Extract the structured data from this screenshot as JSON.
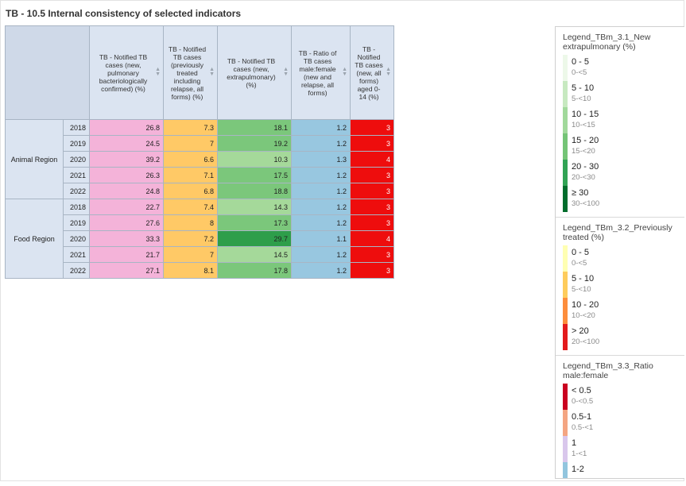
{
  "title": "TB - 10.5 Internal consistency of selected indicators",
  "columns": [
    "TB - Notified TB cases (new, pulmonary bacteriologically confirmed) (%)",
    "TB - Notified TB cases (previously treated including relapse, all forms) (%)",
    "TB - Notified TB cases (new, extrapulmonary) (%)",
    "TB - Ratio of TB cases male:female (new and relapse, all forms)",
    "TB - Notified TB cases (new, all forms) aged 0-14 (%)"
  ],
  "regions": [
    {
      "name": "Animal Region",
      "rows": [
        {
          "year": "2018",
          "values": [
            "26.8",
            "7.3",
            "18.1",
            "1.2",
            "3"
          ],
          "extra_color": "#7bc77b"
        },
        {
          "year": "2019",
          "values": [
            "24.5",
            "7",
            "19.2",
            "1.2",
            "3"
          ],
          "extra_color": "#7bc77b"
        },
        {
          "year": "2020",
          "values": [
            "39.2",
            "6.6",
            "10.3",
            "1.3",
            "4"
          ],
          "extra_color": "#a5d99a"
        },
        {
          "year": "2021",
          "values": [
            "26.3",
            "7.1",
            "17.5",
            "1.2",
            "3"
          ],
          "extra_color": "#7bc77b"
        },
        {
          "year": "2022",
          "values": [
            "24.8",
            "6.8",
            "18.8",
            "1.2",
            "3"
          ],
          "extra_color": "#7bc77b"
        }
      ]
    },
    {
      "name": "Food Region",
      "rows": [
        {
          "year": "2018",
          "values": [
            "22.7",
            "7.4",
            "14.3",
            "1.2",
            "3"
          ],
          "extra_color": "#a5d99a"
        },
        {
          "year": "2019",
          "values": [
            "27.6",
            "8",
            "17.3",
            "1.2",
            "3"
          ],
          "extra_color": "#7bc77b"
        },
        {
          "year": "2020",
          "values": [
            "33.3",
            "7.2",
            "29.7",
            "1.1",
            "4"
          ],
          "extra_color": "#2e9e4a"
        },
        {
          "year": "2021",
          "values": [
            "21.7",
            "7",
            "14.5",
            "1.2",
            "3"
          ],
          "extra_color": "#a5d99a"
        },
        {
          "year": "2022",
          "values": [
            "27.1",
            "8.1",
            "17.8",
            "1.2",
            "3"
          ],
          "extra_color": "#7bc77b"
        }
      ]
    }
  ],
  "legends": [
    {
      "title": "Legend_TBm_3.1_New extrapulmonary (%)",
      "items": [
        {
          "label": "0 - 5",
          "range": "0-<5",
          "color": "#edf8e9"
        },
        {
          "label": "5 - 10",
          "range": "5-<10",
          "color": "#c7e9c0"
        },
        {
          "label": "10 - 15",
          "range": "10-<15",
          "color": "#a1d99b"
        },
        {
          "label": "15 - 20",
          "range": "15-<20",
          "color": "#74c476"
        },
        {
          "label": "20 - 30",
          "range": "20-<30",
          "color": "#31a354"
        },
        {
          "label": "≥ 30",
          "range": "30-<100",
          "color": "#006d2c"
        }
      ]
    },
    {
      "title": "Legend_TBm_3.2_Previously treated (%)",
      "items": [
        {
          "label": "0 - 5",
          "range": "0-<5",
          "color": "#ffffb2"
        },
        {
          "label": "5 - 10",
          "range": "5-<10",
          "color": "#fecc5c"
        },
        {
          "label": "10 - 20",
          "range": "10-<20",
          "color": "#fd8d3c"
        },
        {
          "label": "> 20",
          "range": "20-<100",
          "color": "#e31a1c"
        }
      ]
    },
    {
      "title": "Legend_TBm_3.3_Ratio male:female",
      "items": [
        {
          "label": "< 0.5",
          "range": "0-<0.5",
          "color": "#ca0020"
        },
        {
          "label": "0.5-1",
          "range": "0.5-<1",
          "color": "#f4a582"
        },
        {
          "label": "1",
          "range": "1-<1",
          "color": "#d9c7ec"
        },
        {
          "label": "1-2",
          "range": "",
          "color": "#92c5de"
        }
      ]
    }
  ]
}
